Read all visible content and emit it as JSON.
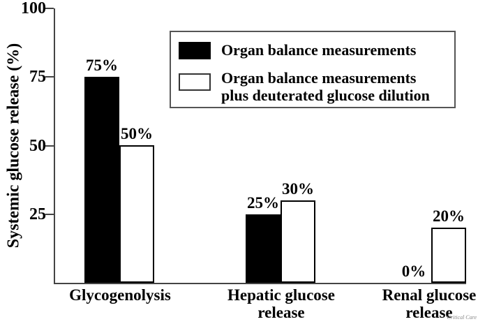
{
  "figure": {
    "credit": "Critical Care"
  },
  "chart_data": {
    "type": "bar",
    "title": "",
    "xlabel": "",
    "ylabel": "Systemic glucose release (%)",
    "ylim": [
      0,
      100
    ],
    "yticks": [
      100,
      75,
      50,
      25
    ],
    "grid": false,
    "legend_position": "upper right",
    "categories": [
      "Glycogenolysis",
      "Hepatic glucose release",
      "Renal glucose release"
    ],
    "category_lines": [
      [
        "Glycogenolysis"
      ],
      [
        "Hepatic glucose",
        "release"
      ],
      [
        "Renal glucose",
        "release"
      ]
    ],
    "series": [
      {
        "name": "Organ balance measurements",
        "fill": "#000000",
        "values": [
          75,
          25,
          0
        ]
      },
      {
        "name": "Organ balance measurements plus deuterated glucose dilution",
        "fill": "#ffffff",
        "values": [
          50,
          30,
          20
        ]
      }
    ],
    "value_labels": [
      [
        "75%",
        "25%",
        "0%"
      ],
      [
        "50%",
        "30%",
        "20%"
      ]
    ],
    "legend": {
      "items": [
        {
          "swatch": "black",
          "lines": [
            "Organ balance measurements"
          ]
        },
        {
          "swatch": "white",
          "lines": [
            "Organ balance measurements",
            "plus deuterated glucose dilution"
          ]
        }
      ]
    },
    "colors": {
      "bar_filled": "#000000",
      "bar_open_border": "#000000",
      "axis": "#444444",
      "text": "#000000",
      "credit": "#888888"
    }
  }
}
